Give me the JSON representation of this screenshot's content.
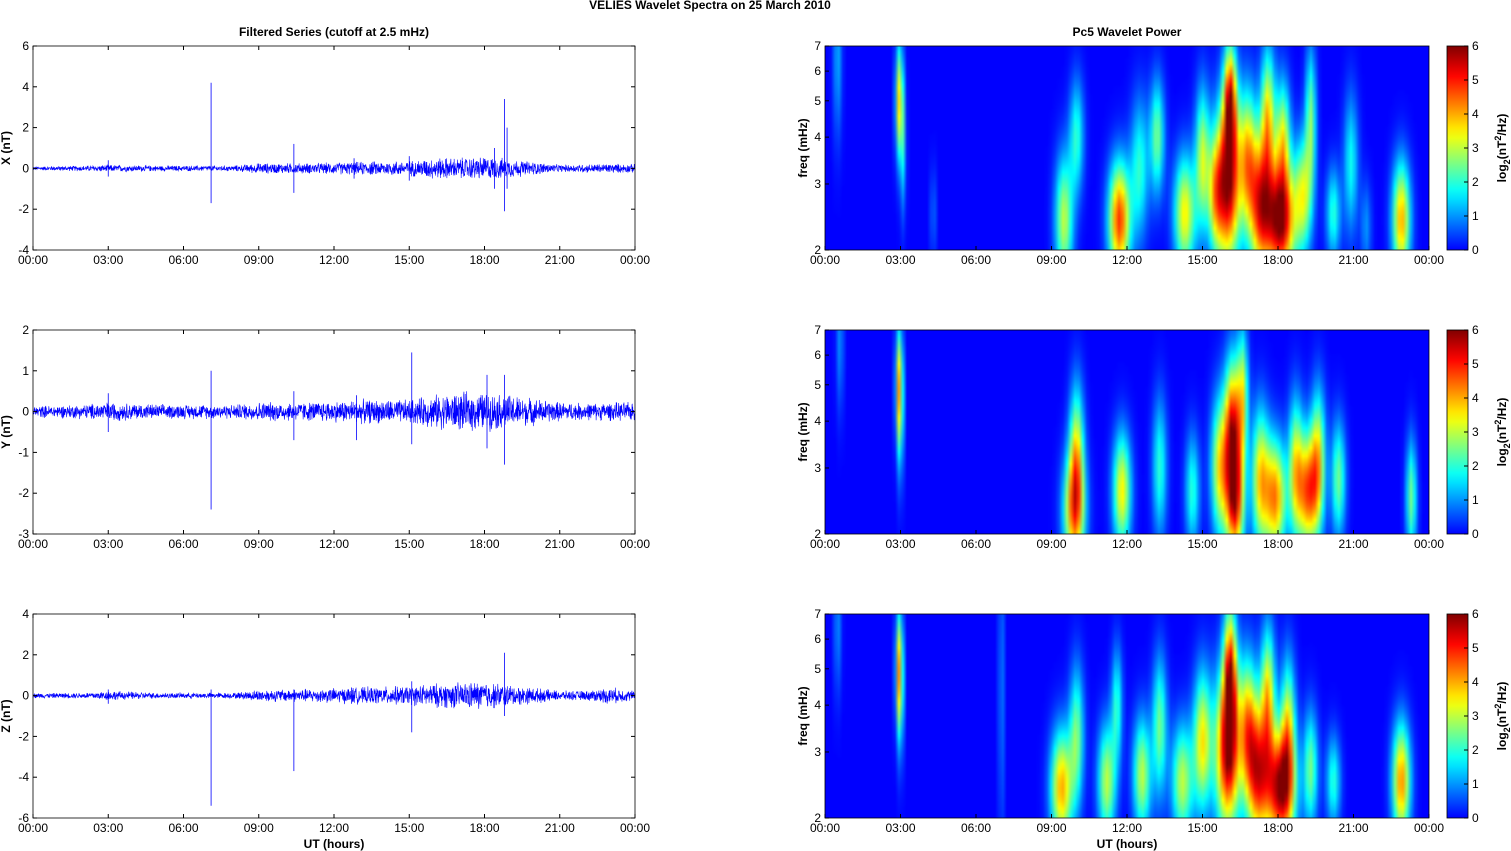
{
  "figure": {
    "title": "VELIES Wavelet Spectra on 25 March     2010",
    "left_title": "Filtered Series (cutoff at 2.5 mHz)",
    "right_title": "Pc5 Wavelet Power",
    "xlabel": "UT (hours)"
  },
  "colors": {
    "trace": "#0000ff",
    "axis": "#000000",
    "background": "#ffffff",
    "colormap": "jet"
  },
  "chart_data": [
    {
      "type": "line",
      "title": "Filtered Series (cutoff at 2.5 mHz)",
      "ylabel": "X (nT)",
      "xlabel": "",
      "x_ticks": [
        "00:00",
        "03:00",
        "06:00",
        "09:00",
        "12:00",
        "15:00",
        "18:00",
        "21:00",
        "00:00"
      ],
      "xlim_hours": [
        0,
        24
      ],
      "ylim": [
        -4,
        6
      ],
      "y_ticks": [
        -4,
        -2,
        0,
        2,
        4,
        6
      ],
      "noise": [
        [
          0,
          0.08
        ],
        [
          2,
          0.12
        ],
        [
          3,
          0.15
        ],
        [
          5,
          0.12
        ],
        [
          8,
          0.12
        ],
        [
          9,
          0.22
        ],
        [
          11,
          0.22
        ],
        [
          13,
          0.28
        ],
        [
          15,
          0.32
        ],
        [
          16,
          0.45
        ],
        [
          17,
          0.45
        ],
        [
          18,
          0.5
        ],
        [
          19,
          0.4
        ],
        [
          21,
          0.15
        ],
        [
          22,
          0.18
        ],
        [
          23,
          0.2
        ],
        [
          24,
          0.18
        ]
      ],
      "spikes": [
        [
          3.0,
          0.4,
          -0.4
        ],
        [
          7.1,
          4.2,
          -1.7
        ],
        [
          10.4,
          1.2,
          -1.2
        ],
        [
          12.8,
          0.5,
          -0.5
        ],
        [
          15.0,
          0.6,
          -0.6
        ],
        [
          18.4,
          1.0,
          -1.0
        ],
        [
          18.8,
          3.4,
          -2.1
        ],
        [
          18.9,
          2.0,
          -1.0
        ]
      ]
    },
    {
      "type": "line",
      "title": "",
      "ylabel": "Y (nT)",
      "xlabel": "",
      "x_ticks": [
        "00:00",
        "03:00",
        "06:00",
        "09:00",
        "12:00",
        "15:00",
        "18:00",
        "21:00",
        "00:00"
      ],
      "xlim_hours": [
        0,
        24
      ],
      "ylim": [
        -3,
        2
      ],
      "y_ticks": [
        -3,
        -2,
        -1,
        0,
        1,
        2
      ],
      "noise": [
        [
          0,
          0.12
        ],
        [
          2,
          0.15
        ],
        [
          3,
          0.2
        ],
        [
          5,
          0.15
        ],
        [
          8,
          0.15
        ],
        [
          9,
          0.2
        ],
        [
          11,
          0.2
        ],
        [
          13,
          0.25
        ],
        [
          15,
          0.25
        ],
        [
          16,
          0.35
        ],
        [
          17,
          0.4
        ],
        [
          18,
          0.4
        ],
        [
          19,
          0.35
        ],
        [
          21,
          0.2
        ],
        [
          22,
          0.18
        ],
        [
          24,
          0.2
        ]
      ],
      "spikes": [
        [
          3.0,
          0.45,
          -0.5
        ],
        [
          7.1,
          1.0,
          -2.4
        ],
        [
          10.4,
          0.5,
          -0.7
        ],
        [
          12.9,
          0.4,
          -0.7
        ],
        [
          15.1,
          1.45,
          -0.8
        ],
        [
          18.1,
          0.9,
          -0.9
        ],
        [
          18.8,
          0.9,
          -1.3
        ]
      ]
    },
    {
      "type": "line",
      "title": "",
      "ylabel": "Z (nT)",
      "xlabel": "UT (hours)",
      "x_ticks": [
        "00:00",
        "03:00",
        "06:00",
        "09:00",
        "12:00",
        "15:00",
        "18:00",
        "21:00",
        "00:00"
      ],
      "xlim_hours": [
        0,
        24
      ],
      "ylim": [
        -6,
        4
      ],
      "y_ticks": [
        -6,
        -4,
        -2,
        0,
        2,
        4
      ],
      "noise": [
        [
          0,
          0.1
        ],
        [
          2,
          0.12
        ],
        [
          3,
          0.2
        ],
        [
          5,
          0.12
        ],
        [
          8,
          0.12
        ],
        [
          9,
          0.25
        ],
        [
          11,
          0.28
        ],
        [
          13,
          0.35
        ],
        [
          15,
          0.4
        ],
        [
          16,
          0.5
        ],
        [
          17,
          0.55
        ],
        [
          18,
          0.6
        ],
        [
          19,
          0.45
        ],
        [
          21,
          0.2
        ],
        [
          22,
          0.2
        ],
        [
          23,
          0.35
        ],
        [
          24,
          0.2
        ]
      ],
      "spikes": [
        [
          3.0,
          0.3,
          -0.4
        ],
        [
          7.1,
          0.3,
          -5.4
        ],
        [
          10.4,
          0.3,
          -3.7
        ],
        [
          12.7,
          0.4,
          -0.4
        ],
        [
          15.1,
          0.7,
          -1.8
        ],
        [
          18.8,
          2.1,
          -1.0
        ]
      ]
    },
    {
      "type": "heatmap",
      "title": "Pc5 Wavelet Power",
      "ylabel": "freq (mHz)",
      "xlabel": "",
      "x_ticks": [
        "00:00",
        "03:00",
        "06:00",
        "09:00",
        "12:00",
        "15:00",
        "18:00",
        "21:00",
        "00:00"
      ],
      "xlim_hours": [
        0,
        24
      ],
      "y_scale": "log",
      "ylim_mHz": [
        2,
        7
      ],
      "y_ticks": [
        2,
        3,
        4,
        5,
        6,
        7
      ],
      "colorbar": {
        "label": "log2(nT^2/Hz)",
        "ticks": [
          0,
          1,
          2,
          3,
          4,
          5,
          6
        ],
        "range": [
          0,
          6
        ]
      },
      "features": [
        [
          0.5,
          6.5,
          0.12,
          0.35,
          1.2
        ],
        [
          2.95,
          5.0,
          0.1,
          0.25,
          3.5
        ],
        [
          3.1,
          3.8,
          0.08,
          0.3,
          1.5
        ],
        [
          4.3,
          2.5,
          0.08,
          0.2,
          0.8
        ],
        [
          9.5,
          2.4,
          0.25,
          0.28,
          3.0
        ],
        [
          10.0,
          4.0,
          0.2,
          0.25,
          2.0
        ],
        [
          11.7,
          2.4,
          0.3,
          0.25,
          4.8
        ],
        [
          12.5,
          3.3,
          0.25,
          0.3,
          2.0
        ],
        [
          13.2,
          4.0,
          0.2,
          0.25,
          2.5
        ],
        [
          14.3,
          2.5,
          0.3,
          0.25,
          3.5
        ],
        [
          15.0,
          3.5,
          0.2,
          0.3,
          3.0
        ],
        [
          15.5,
          2.8,
          0.2,
          0.25,
          2.5
        ],
        [
          16.0,
          3.0,
          0.35,
          0.35,
          5.8
        ],
        [
          16.1,
          5.0,
          0.18,
          0.25,
          4.5
        ],
        [
          16.8,
          3.5,
          0.25,
          0.3,
          3.5
        ],
        [
          17.3,
          2.6,
          0.3,
          0.3,
          4.5
        ],
        [
          17.6,
          4.5,
          0.2,
          0.3,
          3.5
        ],
        [
          18.1,
          2.4,
          0.4,
          0.25,
          6.0
        ],
        [
          18.2,
          4.0,
          0.2,
          0.25,
          3.0
        ],
        [
          19.0,
          2.8,
          0.25,
          0.25,
          3.0
        ],
        [
          19.3,
          4.5,
          0.15,
          0.3,
          2.5
        ],
        [
          20.2,
          2.5,
          0.2,
          0.2,
          2.0
        ],
        [
          20.9,
          3.4,
          0.2,
          0.3,
          1.8
        ],
        [
          22.9,
          2.4,
          0.25,
          0.25,
          4.0
        ],
        [
          21.5,
          2.3,
          0.15,
          0.2,
          1.0
        ]
      ]
    },
    {
      "type": "heatmap",
      "title": "",
      "ylabel": "freq (mHz)",
      "xlabel": "",
      "x_ticks": [
        "00:00",
        "03:00",
        "06:00",
        "09:00",
        "12:00",
        "15:00",
        "18:00",
        "21:00",
        "00:00"
      ],
      "xlim_hours": [
        0,
        24
      ],
      "y_scale": "log",
      "ylim_mHz": [
        2,
        7
      ],
      "y_ticks": [
        2,
        3,
        4,
        5,
        6,
        7
      ],
      "colorbar": {
        "label": "log2(nT^2/Hz)",
        "ticks": [
          0,
          1,
          2,
          3,
          4,
          5,
          6
        ],
        "range": [
          0,
          6
        ]
      },
      "features": [
        [
          0.6,
          6.5,
          0.1,
          0.3,
          1.0
        ],
        [
          2.95,
          5.0,
          0.1,
          0.25,
          3.2
        ],
        [
          3.0,
          4.0,
          0.08,
          0.3,
          1.5
        ],
        [
          9.9,
          2.3,
          0.3,
          0.25,
          4.0
        ],
        [
          10.0,
          3.3,
          0.2,
          0.3,
          3.0
        ],
        [
          11.8,
          2.6,
          0.25,
          0.25,
          3.5
        ],
        [
          13.3,
          3.0,
          0.2,
          0.3,
          2.0
        ],
        [
          14.6,
          2.6,
          0.2,
          0.25,
          2.0
        ],
        [
          15.7,
          3.0,
          0.25,
          0.3,
          3.5
        ],
        [
          16.2,
          3.8,
          0.22,
          0.3,
          5.0
        ],
        [
          16.3,
          2.4,
          0.25,
          0.25,
          4.5
        ],
        [
          16.6,
          4.6,
          0.15,
          0.3,
          3.0
        ],
        [
          17.3,
          2.8,
          0.25,
          0.3,
          3.5
        ],
        [
          17.9,
          2.5,
          0.3,
          0.25,
          4.2
        ],
        [
          18.7,
          3.0,
          0.2,
          0.3,
          3.0
        ],
        [
          19.2,
          2.6,
          0.3,
          0.25,
          4.5
        ],
        [
          19.6,
          3.2,
          0.2,
          0.3,
          3.0
        ],
        [
          20.4,
          2.8,
          0.2,
          0.25,
          2.5
        ],
        [
          23.3,
          2.5,
          0.15,
          0.25,
          2.5
        ]
      ]
    },
    {
      "type": "heatmap",
      "title": "",
      "ylabel": "freq (mHz)",
      "xlabel": "UT (hours)",
      "x_ticks": [
        "00:00",
        "03:00",
        "06:00",
        "09:00",
        "12:00",
        "15:00",
        "18:00",
        "21:00",
        "00:00"
      ],
      "xlim_hours": [
        0,
        24
      ],
      "y_scale": "log",
      "ylim_mHz": [
        2,
        7
      ],
      "y_ticks": [
        2,
        3,
        4,
        5,
        6,
        7
      ],
      "colorbar": {
        "label": "log2(nT^2/Hz)",
        "ticks": [
          0,
          1,
          2,
          3,
          4,
          5,
          6
        ],
        "range": [
          0,
          6
        ]
      },
      "features": [
        [
          0.5,
          6.5,
          0.1,
          0.3,
          1.0
        ],
        [
          2.95,
          5.0,
          0.1,
          0.25,
          3.2
        ],
        [
          3.0,
          4.2,
          0.08,
          0.3,
          1.5
        ],
        [
          7.0,
          4.5,
          0.05,
          0.7,
          2.0
        ],
        [
          9.4,
          2.4,
          0.3,
          0.25,
          4.0
        ],
        [
          10.0,
          3.3,
          0.2,
          0.3,
          2.5
        ],
        [
          11.2,
          2.5,
          0.25,
          0.25,
          3.0
        ],
        [
          11.6,
          4.0,
          0.15,
          0.25,
          2.0
        ],
        [
          12.6,
          2.6,
          0.25,
          0.25,
          3.0
        ],
        [
          13.3,
          3.5,
          0.2,
          0.3,
          2.5
        ],
        [
          14.2,
          2.5,
          0.3,
          0.25,
          3.0
        ],
        [
          15.0,
          3.2,
          0.25,
          0.3,
          3.5
        ],
        [
          16.0,
          3.0,
          0.35,
          0.35,
          5.5
        ],
        [
          16.1,
          4.8,
          0.18,
          0.3,
          4.5
        ],
        [
          16.8,
          3.5,
          0.25,
          0.3,
          3.5
        ],
        [
          17.2,
          2.6,
          0.3,
          0.3,
          4.5
        ],
        [
          17.6,
          4.2,
          0.2,
          0.3,
          3.5
        ],
        [
          18.1,
          2.4,
          0.4,
          0.25,
          5.8
        ],
        [
          18.4,
          3.5,
          0.2,
          0.3,
          3.0
        ],
        [
          19.3,
          2.7,
          0.2,
          0.25,
          2.5
        ],
        [
          20.2,
          2.5,
          0.2,
          0.2,
          2.0
        ],
        [
          22.9,
          2.5,
          0.25,
          0.25,
          4.2
        ]
      ]
    }
  ]
}
